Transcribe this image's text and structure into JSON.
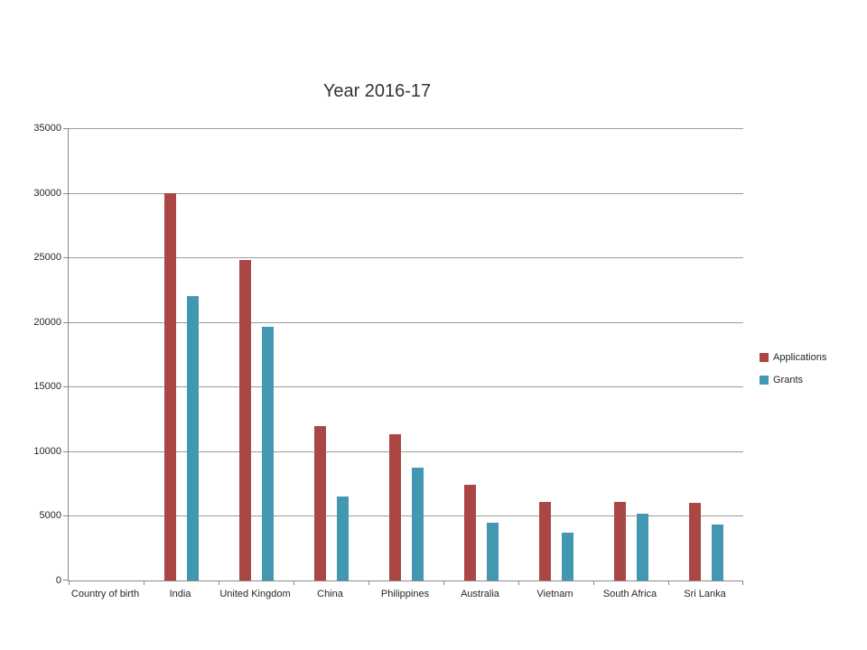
{
  "chart_data": {
    "type": "bar",
    "title": "Year 2016-17",
    "categories": [
      "Country of birth",
      "India",
      "United Kingdom",
      "China",
      "Philippines",
      "Australia",
      "Vietnam",
      "South Africa",
      "Sri Lanka"
    ],
    "series": [
      {
        "name": "Applications",
        "color": "#AA4643",
        "values": [
          0,
          30000,
          24800,
          11950,
          11300,
          7400,
          6100,
          6100,
          6000
        ]
      },
      {
        "name": "Grants",
        "color": "#4398B1",
        "values": [
          0,
          22000,
          19650,
          6500,
          8700,
          4450,
          3700,
          5200,
          4300
        ]
      }
    ],
    "ylim": [
      0,
      35000
    ],
    "ytick_step": 5000,
    "yticks": [
      "0",
      "5000",
      "10000",
      "15000",
      "20000",
      "25000",
      "30000",
      "35000"
    ],
    "xlabel": "",
    "ylabel": "",
    "grid": true,
    "legend_position": "right"
  },
  "colors": {
    "applications": "#AA4643",
    "grants": "#4398B1",
    "gridline": "#9c9c9c",
    "axis": "#898989",
    "text": "#262626"
  }
}
